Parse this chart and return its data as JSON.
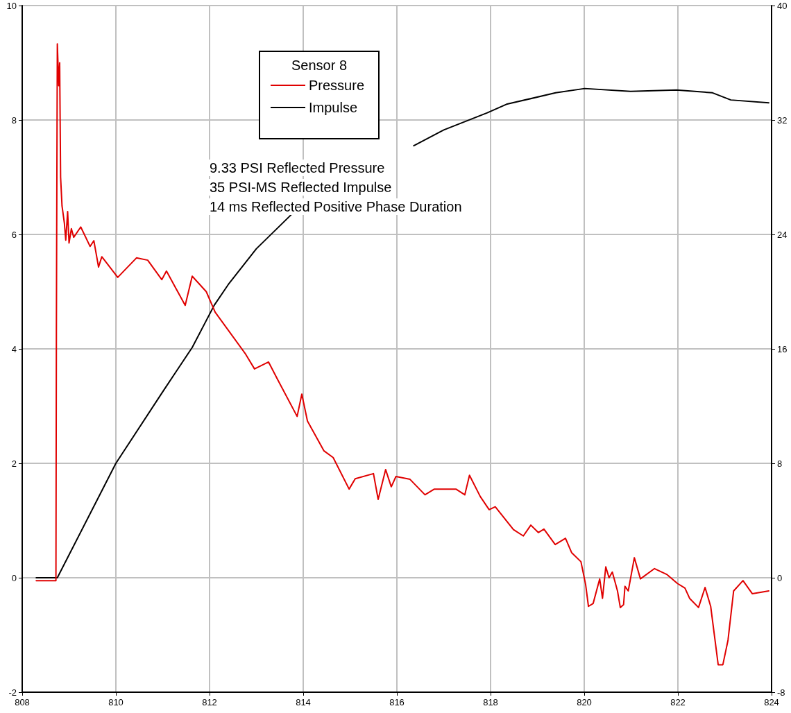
{
  "chart_data": {
    "type": "line",
    "legend_title": "Sensor 8",
    "annotations": [
      "9.33 PSI Reflected Pressure",
      "35 PSI-MS Reflected Impulse",
      "14 ms Reflected Positive Phase Duration"
    ],
    "xlim": [
      808,
      824
    ],
    "xticks": [
      808,
      810,
      812,
      814,
      816,
      818,
      820,
      822,
      824
    ],
    "ylim": [
      -2,
      10
    ],
    "yticks": [
      -2,
      0,
      2,
      4,
      6,
      8,
      10
    ],
    "y2lim": [
      -8,
      40
    ],
    "y2ticks": [
      -8,
      0,
      8,
      16,
      24,
      32,
      40
    ],
    "grid": true,
    "legend": "top",
    "line_style": "solid",
    "series": [
      {
        "name": "Pressure",
        "color": "#e00000",
        "x": [
          808.3,
          808.72,
          808.73,
          808.74,
          808.75,
          808.78,
          808.8,
          808.82,
          808.85,
          808.9,
          808.93,
          808.97,
          809.0,
          809.05,
          809.1,
          809.25,
          809.45,
          809.53,
          809.63,
          809.7,
          810.04,
          810.44,
          810.68,
          810.98,
          811.08,
          811.48,
          811.63,
          811.93,
          812.12,
          812.76,
          812.96,
          813.26,
          813.45,
          813.87,
          813.97,
          814.09,
          814.44,
          814.64,
          814.98,
          815.11,
          815.5,
          815.6,
          815.76,
          815.88,
          815.98,
          816.28,
          816.6,
          816.8,
          817.26,
          817.45,
          817.55,
          817.78,
          817.97,
          818.1,
          818.49,
          818.7,
          818.86,
          819.02,
          819.14,
          819.38,
          819.6,
          819.73,
          819.93,
          820.03,
          820.09,
          820.19,
          820.33,
          820.39,
          820.46,
          820.53,
          820.6,
          820.71,
          820.77,
          820.84,
          820.87,
          820.94,
          821.07,
          821.2,
          821.5,
          821.76,
          821.99,
          822.15,
          822.25,
          822.44,
          822.58,
          822.7,
          822.86,
          822.96,
          823.07,
          823.19,
          823.39,
          823.59,
          823.94
        ],
        "values": [
          -0.05,
          -0.05,
          4.3,
          6.9,
          9.33,
          8.6,
          9.0,
          7.0,
          6.5,
          6.2,
          5.9,
          6.4,
          5.85,
          6.1,
          5.95,
          6.13,
          5.79,
          5.89,
          5.43,
          5.61,
          5.25,
          5.59,
          5.55,
          5.21,
          5.36,
          4.76,
          5.27,
          5.0,
          4.64,
          3.92,
          3.65,
          3.77,
          3.47,
          2.82,
          3.21,
          2.74,
          2.22,
          2.1,
          1.55,
          1.73,
          1.82,
          1.37,
          1.89,
          1.59,
          1.77,
          1.72,
          1.45,
          1.55,
          1.55,
          1.45,
          1.79,
          1.42,
          1.19,
          1.24,
          0.84,
          0.73,
          0.92,
          0.79,
          0.85,
          0.58,
          0.69,
          0.44,
          0.28,
          -0.12,
          -0.5,
          -0.45,
          -0.02,
          -0.36,
          0.19,
          0.0,
          0.1,
          -0.23,
          -0.52,
          -0.47,
          -0.15,
          -0.23,
          0.35,
          -0.02,
          0.16,
          0.06,
          -0.1,
          -0.18,
          -0.36,
          -0.52,
          -0.17,
          -0.5,
          -1.52,
          -1.52,
          -1.09,
          -0.23,
          -0.05,
          -0.28,
          -0.23
        ]
      },
      {
        "name": "Impulse",
        "color": "#000000",
        "axis": "y2",
        "x": [
          808.3,
          808.75,
          809.5,
          810.0,
          811.0,
          811.63,
          812.1,
          812.4,
          813.0,
          813.75,
          814.2,
          814.6,
          815.2,
          815.8,
          816.36,
          817.0,
          817.93,
          818.34,
          819.39,
          820.01,
          820.99,
          821.97,
          822.74,
          823.13,
          823.94
        ],
        "values": [
          0,
          0,
          4.8,
          8.0,
          13.0,
          16.1,
          19.05,
          20.5,
          23.0,
          25.4,
          null,
          null,
          null,
          null,
          30.2,
          31.3,
          32.5,
          33.1,
          33.9,
          34.2,
          34.0,
          34.1,
          33.9,
          33.4,
          33.2
        ]
      }
    ]
  }
}
